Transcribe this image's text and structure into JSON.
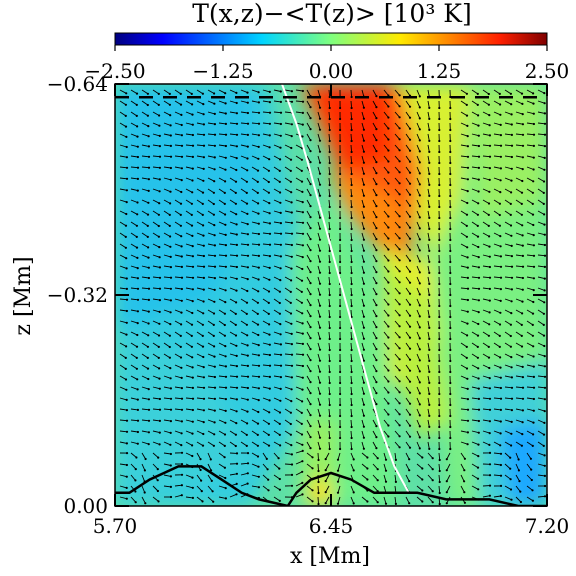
{
  "chart_data": {
    "type": "heatmap",
    "title": "T(x,z)−<T(z)> [10³ K]",
    "colorbar": {
      "colormap": "jet",
      "range": [
        -2.5,
        2.5
      ],
      "tick_values": [
        -2.5,
        -1.25,
        0.0,
        1.25,
        2.5
      ],
      "tick_labels": [
        "−2.50",
        "−1.25",
        "0.00",
        "1.25",
        "2.50"
      ]
    },
    "xlabel": "x [Mm]",
    "ylabel": "z [Mm]",
    "xlim": [
      5.7,
      7.2
    ],
    "ylim": [
      0.0,
      -0.64
    ],
    "x_ticks": {
      "values": [
        5.7,
        6.45,
        7.2
      ],
      "labels": [
        "5.70",
        "6.45",
        "7.20"
      ]
    },
    "y_ticks": {
      "values": [
        -0.64,
        -0.32,
        0.0
      ],
      "labels": [
        "−0.64",
        "−0.32",
        "0.00"
      ]
    },
    "overlays": {
      "velocity_arrows": true,
      "black_contour": [
        [
          5.7,
          -0.02
        ],
        [
          5.75,
          -0.02
        ],
        [
          5.82,
          -0.04
        ],
        [
          5.92,
          -0.06
        ],
        [
          6.0,
          -0.06
        ],
        [
          6.07,
          -0.04
        ],
        [
          6.14,
          -0.02
        ],
        [
          6.2,
          -0.01
        ],
        [
          6.3,
          0.0
        ],
        [
          6.33,
          -0.02
        ],
        [
          6.38,
          -0.04
        ],
        [
          6.45,
          -0.05
        ],
        [
          6.52,
          -0.04
        ],
        [
          6.6,
          -0.02
        ],
        [
          6.75,
          -0.02
        ],
        [
          6.85,
          -0.01
        ],
        [
          7.0,
          -0.01
        ],
        [
          7.1,
          0.0
        ],
        [
          7.2,
          0.0
        ]
      ],
      "white_contour": [
        [
          6.28,
          -0.64
        ],
        [
          6.33,
          -0.58
        ],
        [
          6.37,
          -0.52
        ],
        [
          6.42,
          -0.44
        ],
        [
          6.47,
          -0.36
        ],
        [
          6.52,
          -0.28
        ],
        [
          6.57,
          -0.2
        ],
        [
          6.62,
          -0.12
        ],
        [
          6.67,
          -0.06
        ],
        [
          6.72,
          -0.02
        ]
      ],
      "dashed_line_z": -0.62
    }
  }
}
